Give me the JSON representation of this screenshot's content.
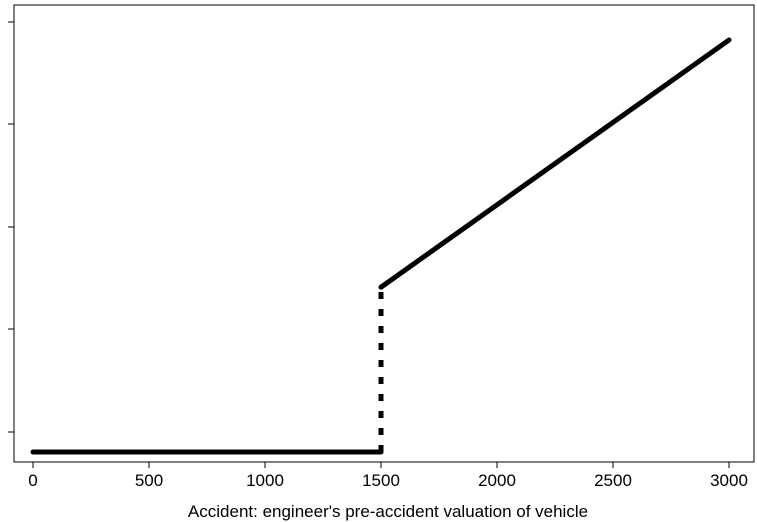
{
  "chart_data": {
    "type": "line",
    "title": "",
    "xlabel": "Accident: engineer's pre-accident valuation of vehicle",
    "ylabel": "",
    "xlim": [
      -50,
      3060
    ],
    "x_ticks": [
      0,
      500,
      1000,
      1500,
      2000,
      2500,
      3000
    ],
    "y_tick_count": 5,
    "y_tick_labels_shown": false,
    "grid": false,
    "legend": "none",
    "series": [
      {
        "style": "solid",
        "color": "#000000",
        "points": [
          [
            0,
            0.0
          ],
          [
            1500,
            0.0
          ]
        ]
      },
      {
        "style": "dotted",
        "color": "#000000",
        "points": [
          [
            1500,
            0.0
          ],
          [
            1500,
            0.4
          ]
        ]
      },
      {
        "style": "solid",
        "color": "#000000",
        "points": [
          [
            1500,
            0.4
          ],
          [
            3000,
            1.0
          ]
        ]
      }
    ],
    "ylim_relative": [
      -0.02,
      1.07
    ]
  }
}
